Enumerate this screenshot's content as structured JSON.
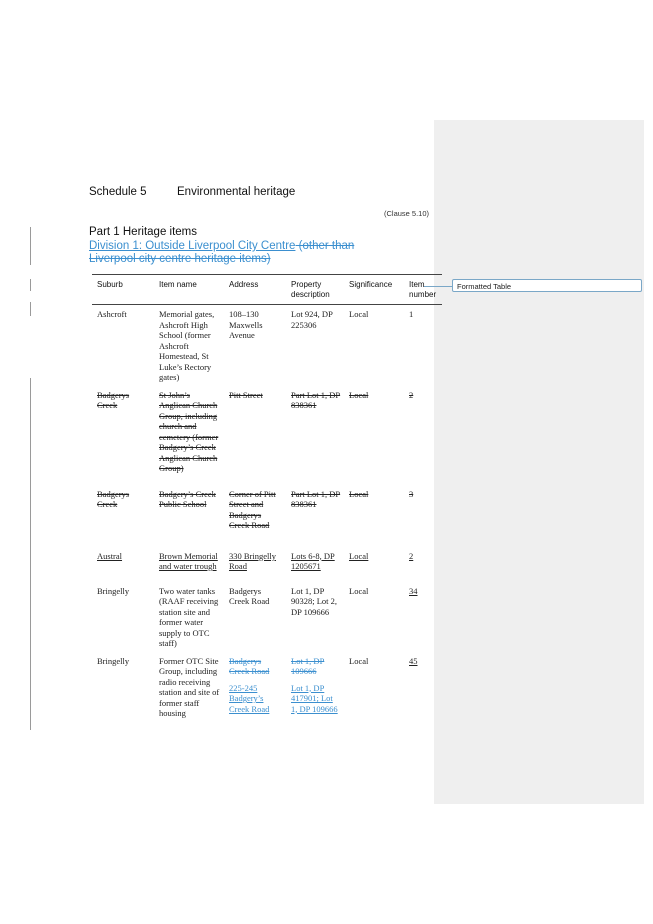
{
  "schedule": {
    "number": "Schedule 5",
    "title": "Environmental heritage"
  },
  "clause_ref": "(Clause 5.10)",
  "part_title": "Part 1 Heritage items",
  "division": {
    "inserted": "Division 1: Outside Liverpool City Centre",
    "deleted": " (other than Liverpool city centre heritage items)"
  },
  "comment": {
    "label": "Formatted Table"
  },
  "table": {
    "headers": {
      "suburb": "Suburb",
      "item_name": "Item name",
      "address": "Address",
      "property": "Property description",
      "significance": "Significance",
      "item_number": "Item number"
    },
    "rows": [
      {
        "suburb": "Ashcroft",
        "item_name": "Memorial gates, Ashcroft High School (former Ashcroft Homestead, St Luke’s Rectory gates)",
        "address": "108–130 Maxwells Avenue",
        "property": "Lot 924, DP 225306",
        "significance": "Local",
        "item_number": "1",
        "style": "normal"
      },
      {
        "suburb": "Badgerys Creek",
        "item_name": "St John’s Anglican Church Group, including church and cemetery (former Badgery’s Creek Anglican Church Group)",
        "address": "Pitt Street",
        "property": "Part Lot 1, DP 838361",
        "significance": "Local",
        "item_number": "2",
        "style": "deleted"
      },
      {
        "suburb": "Badgerys Creek",
        "item_name": "Badgery’s Creek Public School",
        "address": "Corner of Pitt Street and Badgerys Creek Road",
        "property": "Part Lot 1, DP 838361",
        "significance": "Local",
        "item_number": "3",
        "style": "deleted"
      },
      {
        "suburb": "Austral",
        "item_name": "Brown Memorial and water trough",
        "address": "330 Bringelly Road",
        "property": "Lots 6-8, DP 1205671",
        "significance": "Local",
        "item_number": "2",
        "style": "inserted"
      },
      {
        "suburb": "Bringelly",
        "item_name": "Two water tanks (RAAF receiving station site and former water supply to OTC staff)",
        "address": "Badgerys Creek Road",
        "property": "Lot 1, DP 90328; Lot 2, DP 109666",
        "significance": "Local",
        "item_number": "34",
        "style": "normal",
        "number_style": "inserted"
      },
      {
        "suburb": "Bringelly",
        "item_name": "Former OTC Site Group, including radio receiving station and site of former staff housing",
        "address_deleted": "Badgerys Creek Road",
        "address_inserted": "225-245 Badgery’s Creek Road",
        "property_deleted": "Lot 1, DP 109666",
        "property_inserted": "Lot 1, DP 417901; Lot 1, DP 109666",
        "significance": "Local",
        "item_number": "45",
        "style": "mixed"
      }
    ]
  }
}
